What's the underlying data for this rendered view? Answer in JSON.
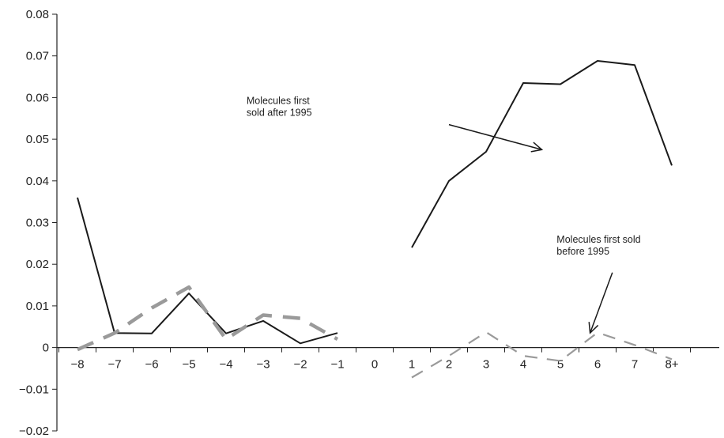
{
  "chart_data": {
    "type": "line",
    "categories": [
      "−8",
      "−7",
      "−6",
      "−5",
      "−4",
      "−3",
      "−2",
      "−1",
      "0",
      "1",
      "2",
      "3",
      "4",
      "5",
      "6",
      "7",
      "8+"
    ],
    "ylim": [
      -0.02,
      0.08
    ],
    "yticks": [
      "0.08",
      "0.07",
      "0.06",
      "0.05",
      "0.04",
      "0.03",
      "0.02",
      "0.01",
      "0",
      "−0.01",
      "−0.02"
    ],
    "ytick_values": [
      0.08,
      0.07,
      0.06,
      0.05,
      0.04,
      0.03,
      0.02,
      0.01,
      0,
      -0.01,
      -0.02
    ],
    "grid": false,
    "series": [
      {
        "name": "Molecules first sold after 1995",
        "style": "solid",
        "color": "#1a1a1a",
        "segments": [
          [
            [
              0,
              0.036
            ],
            [
              1,
              0.0035
            ],
            [
              2,
              0.0034
            ],
            [
              3,
              0.013
            ],
            [
              4,
              0.0034
            ],
            [
              5,
              0.0064
            ],
            [
              6,
              0.001
            ],
            [
              7,
              0.0035
            ]
          ],
          [
            [
              9,
              0.024
            ],
            [
              10,
              0.04
            ],
            [
              11,
              0.047
            ],
            [
              12,
              0.0635
            ],
            [
              13,
              0.0632
            ],
            [
              14,
              0.0688
            ],
            [
              15,
              0.0678
            ],
            [
              16,
              0.0437
            ]
          ]
        ]
      },
      {
        "name": "Molecules first sold before 1995",
        "style": "dashed",
        "color": "#9a9a9a",
        "segments": [
          [
            [
              0,
              -0.0005
            ],
            [
              1,
              0.0035
            ],
            [
              2,
              0.0095
            ],
            [
              3,
              0.0145
            ],
            [
              4,
              0.002
            ],
            [
              5,
              0.0078
            ],
            [
              6,
              0.007
            ],
            [
              7,
              0.002
            ]
          ],
          [
            [
              9,
              -0.0072
            ],
            [
              10,
              -0.002
            ],
            [
              11,
              0.0037
            ],
            [
              12,
              -0.002
            ],
            [
              13,
              -0.0032
            ],
            [
              14,
              0.0036
            ],
            [
              15,
              0.0006
            ],
            [
              16,
              -0.0028
            ]
          ]
        ]
      }
    ],
    "annotations": [
      {
        "lines": [
          "Molecules first",
          "sold after 1995"
        ],
        "text_at": [
          4.55,
          0.0585
        ],
        "arrow_from": [
          10.0,
          0.0535
        ],
        "arrow_to": [
          12.5,
          0.0475
        ]
      },
      {
        "lines": [
          "Molecules first sold",
          "before 1995"
        ],
        "text_at": [
          12.9,
          0.0252
        ],
        "arrow_from": [
          14.4,
          0.018
        ],
        "arrow_to": [
          13.8,
          0.0035
        ]
      }
    ]
  }
}
